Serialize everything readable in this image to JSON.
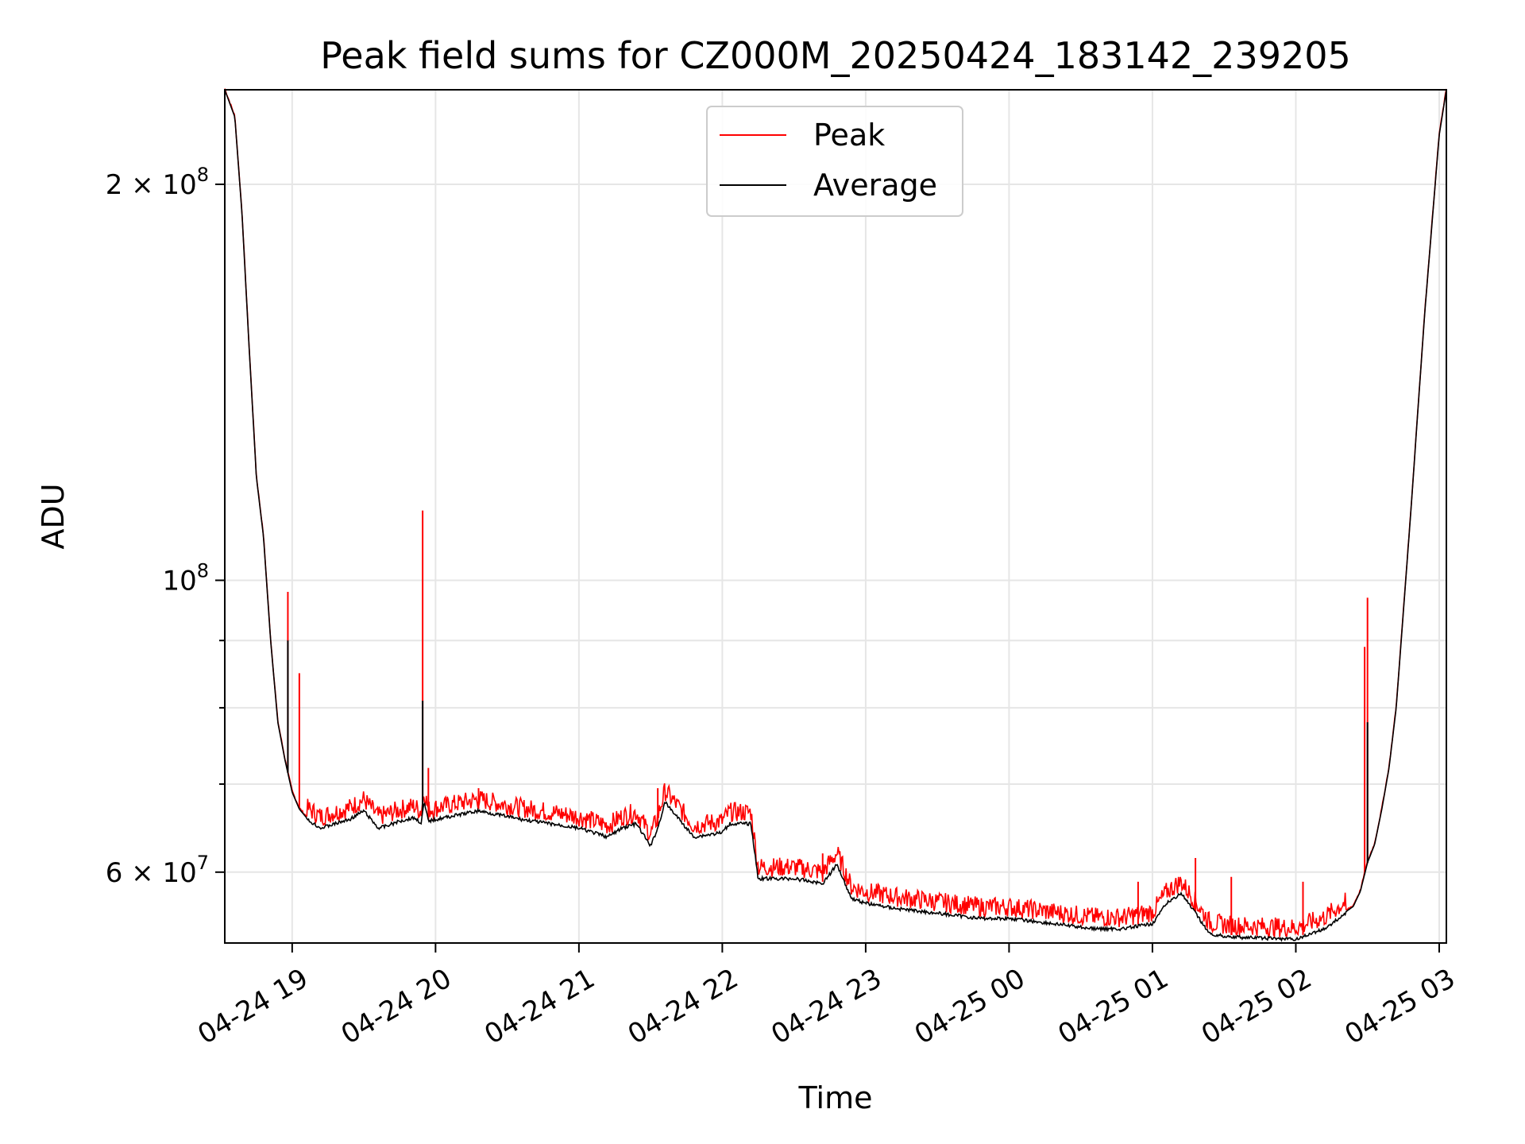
{
  "chart_data": {
    "type": "line",
    "title": "Peak field sums for CZ000M_20250424_183142_239205",
    "xlabel": "Time",
    "ylabel": "ADU",
    "yscale": "log",
    "ylim": [
      53000000,
      236000000
    ],
    "xlim_hours": [
      18.53,
      27.05
    ],
    "grid": true,
    "legend": {
      "placement": "top-center",
      "entries": [
        "Peak",
        "Average"
      ]
    },
    "x_ticks": [
      {
        "label": "04-24 19",
        "hour": 19
      },
      {
        "label": "04-24 20",
        "hour": 20
      },
      {
        "label": "04-24 21",
        "hour": 21
      },
      {
        "label": "04-24 22",
        "hour": 22
      },
      {
        "label": "04-24 23",
        "hour": 23
      },
      {
        "label": "04-25 00",
        "hour": 24
      },
      {
        "label": "04-25 01",
        "hour": 25
      },
      {
        "label": "04-25 02",
        "hour": 26
      },
      {
        "label": "04-25 03",
        "hour": 27
      }
    ],
    "y_ticks": [
      {
        "value": 60000000,
        "base": "6 × 10",
        "exp": "7"
      },
      {
        "value": 100000000,
        "base": "10",
        "exp": "8"
      },
      {
        "value": 200000000,
        "base": "2 × 10",
        "exp": "8"
      }
    ],
    "y_minor_ticks": [
      70000000,
      80000000,
      90000000
    ],
    "series": [
      {
        "name": "Average",
        "color": "#000000",
        "x_hours": [
          18.53,
          18.6,
          18.65,
          18.7,
          18.75,
          18.8,
          18.85,
          18.9,
          18.95,
          19.0,
          19.05,
          19.1,
          19.2,
          19.3,
          19.4,
          19.5,
          19.6,
          19.65,
          19.7,
          19.75,
          19.8,
          19.85,
          19.9,
          19.92,
          19.95,
          20.0,
          20.3,
          20.6,
          21.0,
          21.2,
          21.3,
          21.4,
          21.5,
          21.55,
          21.6,
          21.7,
          21.8,
          22.0,
          22.05,
          22.2,
          22.25,
          22.5,
          22.7,
          22.8,
          22.9,
          23.0,
          23.2,
          23.5,
          23.8,
          24.0,
          24.3,
          24.6,
          24.8,
          25.0,
          25.1,
          25.2,
          25.3,
          25.4,
          25.5,
          25.6,
          25.8,
          26.0,
          26.2,
          26.4,
          26.45,
          26.5,
          26.55,
          26.6,
          26.65,
          26.7,
          26.8,
          26.9,
          27.0,
          27.05
        ],
        "values": [
          236000000,
          225000000,
          190000000,
          150000000,
          120000000,
          108000000,
          90000000,
          78000000,
          73000000,
          69000000,
          67000000,
          66000000,
          65000000,
          65500000,
          66000000,
          67000000,
          65000000,
          65200000,
          65500000,
          65800000,
          66000000,
          66200000,
          65600000,
          68000000,
          65800000,
          66000000,
          67000000,
          66000000,
          65000000,
          64000000,
          65000000,
          65500000,
          63000000,
          65000000,
          68000000,
          66000000,
          64000000,
          64500000,
          65500000,
          65500000,
          59500000,
          59500000,
          59000000,
          61000000,
          57500000,
          57000000,
          56500000,
          56000000,
          55500000,
          55500000,
          55000000,
          54500000,
          54500000,
          55000000,
          57000000,
          58000000,
          56000000,
          54000000,
          53800000,
          53700000,
          53600000,
          53500000,
          54500000,
          56500000,
          58000000,
          61000000,
          63000000,
          67000000,
          72000000,
          80000000,
          112000000,
          160000000,
          218000000,
          236000000
        ]
      },
      {
        "name": "Peak",
        "color": "#ff0000",
        "spikes": [
          {
            "x_hour": 18.97,
            "value": 98000000
          },
          {
            "x_hour": 19.05,
            "value": 85000000
          },
          {
            "x_hour": 19.91,
            "value": 113000000
          },
          {
            "x_hour": 19.95,
            "value": 72000000
          },
          {
            "x_hour": 20.3,
            "value": 69500000
          },
          {
            "x_hour": 21.55,
            "value": 69500000
          },
          {
            "x_hour": 22.7,
            "value": 62000000
          },
          {
            "x_hour": 24.9,
            "value": 59000000
          },
          {
            "x_hour": 25.3,
            "value": 61500000
          },
          {
            "x_hour": 25.55,
            "value": 59500000
          },
          {
            "x_hour": 26.05,
            "value": 59000000
          },
          {
            "x_hour": 26.48,
            "value": 89000000
          },
          {
            "x_hour": 26.5,
            "value": 97000000
          }
        ]
      }
    ]
  }
}
